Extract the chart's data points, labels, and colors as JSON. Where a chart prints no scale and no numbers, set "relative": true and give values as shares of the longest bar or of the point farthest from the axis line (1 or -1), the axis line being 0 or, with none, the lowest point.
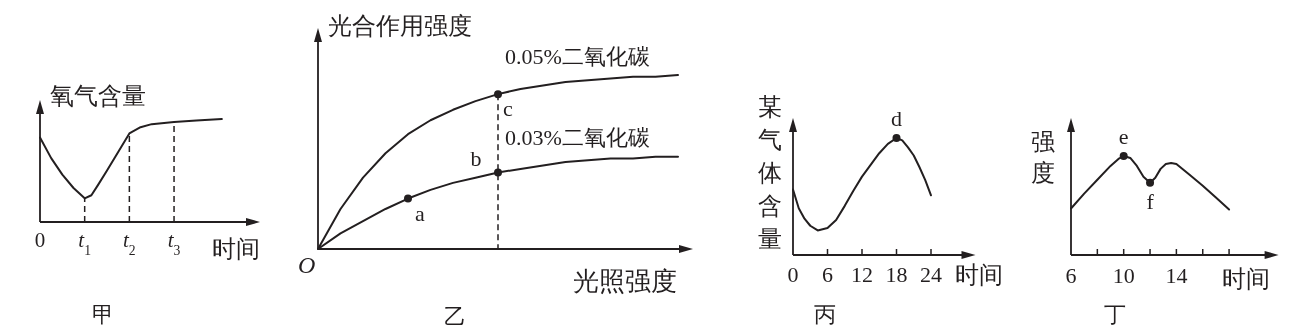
{
  "chart_data": [
    {
      "type": "line",
      "title": "甲",
      "ylabel": "氧气含量",
      "xlabel": "时间",
      "relative": true,
      "x": [
        0,
        0.25,
        0.5,
        0.75,
        1,
        1.15,
        1.3,
        1.5,
        1.75,
        2,
        2.25,
        2.5,
        3,
        3.5,
        4.07
      ],
      "values": [
        0.82,
        0.62,
        0.46,
        0.33,
        0.23,
        0.26,
        0.36,
        0.5,
        0.68,
        0.86,
        0.92,
        0.95,
        0.97,
        0.985,
        1
      ],
      "color": "#231f20",
      "xlim": [
        0,
        4.7
      ],
      "xticks": [
        0,
        {
          "value": 1,
          "label": "t$_{1}$"
        },
        {
          "value": 2,
          "label": "t$_{2}$"
        },
        {
          "value": 3,
          "label": "t$_{3}$"
        }
      ],
      "ref_lines": [
        {
          "axis": "x",
          "value": 1,
          "line_style": "dashed"
        },
        {
          "axis": "x",
          "value": 2,
          "line_style": "dashed"
        },
        {
          "axis": "x",
          "value": 3,
          "line_style": "dashed"
        }
      ]
    },
    {
      "type": "line",
      "title": "乙",
      "ylabel": "光合作用强度",
      "xlabel": "光照强度",
      "relative": true,
      "categories": [
        null,
        null,
        null,
        null,
        null,
        null,
        null,
        null,
        null,
        null,
        null,
        null,
        null,
        null,
        null,
        null,
        null
      ],
      "series": [
        {
          "name": "0.05%二氧化碳",
          "color": "#231f20",
          "values": [
            0,
            0.23,
            0.41,
            0.55,
            0.66,
            0.74,
            0.8,
            0.85,
            0.89,
            0.92,
            0.94,
            0.96,
            0.97,
            0.98,
            0.99,
            0.99,
            1
          ]
        },
        {
          "name": "0.03%二氧化碳",
          "color": "#231f20",
          "values": [
            0,
            0.09,
            0.16,
            0.23,
            0.29,
            0.34,
            0.38,
            0.41,
            0.44,
            0.46,
            0.48,
            0.5,
            0.51,
            0.52,
            0.52,
            0.53,
            0.53
          ]
        }
      ],
      "annotations": [
        "O",
        {
          "text": "a",
          "y": 0.29
        },
        {
          "text": "b",
          "y": 0.44
        },
        {
          "text": "c",
          "y": 0.89
        }
      ]
    },
    {
      "type": "line",
      "title": "丙",
      "ylabel": "某气体含量",
      "xlabel": "时间",
      "relative": true,
      "xlim": [
        0,
        30
      ],
      "xticks": [
        0,
        6,
        12,
        18,
        24
      ],
      "color": "#231f20",
      "x": [
        0,
        1,
        2,
        3,
        4.3,
        6,
        7.5,
        9,
        10.5,
        12,
        13.5,
        15,
        16.5,
        18,
        19,
        20,
        21,
        22,
        23,
        24
      ],
      "values": [
        0.56,
        0.4,
        0.31,
        0.25,
        0.21,
        0.23,
        0.3,
        0.42,
        0.55,
        0.67,
        0.77,
        0.87,
        0.95,
        1,
        0.98,
        0.92,
        0.85,
        0.75,
        0.64,
        0.51
      ],
      "annotations": [
        {
          "text": "d",
          "x": 18,
          "y": 1
        }
      ]
    },
    {
      "type": "line",
      "title": "丁",
      "ylabel": "强度",
      "xlabel": "时间",
      "relative": true,
      "xlim": [
        6,
        21
      ],
      "xticks": [
        6,
        {
          "value": 8,
          "label": null
        },
        10,
        {
          "value": 12,
          "label": null
        },
        14,
        {
          "value": 16,
          "label": null
        },
        {
          "value": 18,
          "label": null
        }
      ],
      "color": "#231f20",
      "x": [
        6,
        7,
        8,
        9,
        9.6,
        10,
        10.5,
        11,
        11.5,
        12,
        12.4,
        12.8,
        13.2,
        13.6,
        14,
        15,
        16,
        17,
        18
      ],
      "values": [
        0.47,
        0.62,
        0.76,
        0.9,
        0.97,
        1,
        0.98,
        0.9,
        0.79,
        0.73,
        0.78,
        0.87,
        0.92,
        0.93,
        0.92,
        0.81,
        0.7,
        0.58,
        0.46
      ],
      "annotations": [
        {
          "text": "e",
          "x": 10,
          "y": 1
        },
        {
          "text": "f",
          "x": 12,
          "y": 0.73
        }
      ]
    }
  ]
}
